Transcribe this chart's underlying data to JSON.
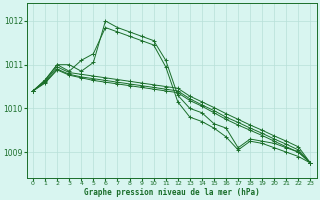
{
  "title": "Graphe pression niveau de la mer (hPa)",
  "background_color": "#d8f5f0",
  "grid_color": "#b8e0d8",
  "line_color": "#1a6e2a",
  "x_labels": [
    "0",
    "1",
    "2",
    "3",
    "4",
    "5",
    "6",
    "7",
    "8",
    "9",
    "10",
    "11",
    "12",
    "13",
    "14",
    "15",
    "16",
    "17",
    "18",
    "19",
    "20",
    "21",
    "22",
    "23"
  ],
  "ylim": [
    1008.4,
    1012.4
  ],
  "yticks": [
    1009,
    1010,
    1011,
    1012
  ],
  "series": [
    [
      1010.4,
      1010.65,
      1011.0,
      1011.0,
      1010.85,
      1011.05,
      1012.0,
      1011.85,
      1011.75,
      1011.65,
      1011.55,
      1011.1,
      1010.3,
      1010.0,
      1009.9,
      1009.65,
      1009.55,
      1009.1,
      1009.3,
      1009.25,
      1009.2,
      1009.1,
      1009.0,
      1008.75
    ],
    [
      1010.4,
      1010.65,
      1011.0,
      1010.85,
      1011.1,
      1011.25,
      1011.85,
      1011.75,
      1011.65,
      1011.55,
      1011.45,
      1010.95,
      1010.15,
      1009.8,
      1009.7,
      1009.55,
      1009.35,
      1009.05,
      1009.25,
      1009.2,
      1009.1,
      1009.0,
      1008.9,
      1008.75
    ],
    [
      1010.4,
      1010.62,
      1010.95,
      1010.82,
      1010.78,
      1010.74,
      1010.7,
      1010.66,
      1010.62,
      1010.58,
      1010.54,
      1010.5,
      1010.46,
      1010.28,
      1010.15,
      1010.02,
      1009.88,
      1009.75,
      1009.62,
      1009.5,
      1009.37,
      1009.25,
      1009.12,
      1008.75
    ],
    [
      1010.4,
      1010.6,
      1010.9,
      1010.78,
      1010.72,
      1010.68,
      1010.64,
      1010.6,
      1010.56,
      1010.52,
      1010.48,
      1010.44,
      1010.4,
      1010.22,
      1010.08,
      1009.95,
      1009.8,
      1009.68,
      1009.55,
      1009.43,
      1009.3,
      1009.18,
      1009.05,
      1008.75
    ],
    [
      1010.4,
      1010.58,
      1010.88,
      1010.76,
      1010.7,
      1010.64,
      1010.6,
      1010.56,
      1010.52,
      1010.48,
      1010.44,
      1010.4,
      1010.36,
      1010.18,
      1010.05,
      1009.9,
      1009.75,
      1009.62,
      1009.5,
      1009.38,
      1009.25,
      1009.12,
      1009.0,
      1008.75
    ]
  ]
}
